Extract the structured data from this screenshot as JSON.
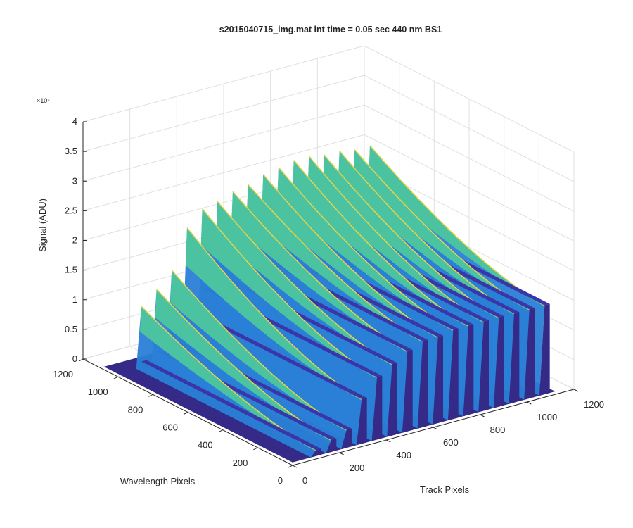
{
  "chart_data": {
    "type": "surface",
    "title": "s2015040715_img.mat int time = 0.05 sec  440 nm BS1",
    "xlabel": "Track Pixels",
    "ylabel": "Wavelength Pixels",
    "zlabel": "Signal (ADU)",
    "z_multiplier_label": "×10⁴",
    "x_ticks": [
      "0",
      "200",
      "400",
      "600",
      "800",
      "1000",
      "1200"
    ],
    "y_ticks": [
      "0",
      "200",
      "400",
      "600",
      "800",
      "1000",
      "1200"
    ],
    "z_ticks": [
      "0",
      "0.5",
      "1",
      "1.5",
      "2",
      "2.5",
      "3",
      "3.5",
      "4"
    ],
    "xlim": [
      0,
      1200
    ],
    "ylim": [
      0,
      1200
    ],
    "zlim": [
      0,
      40000
    ],
    "grid": true,
    "colormap": "parula",
    "baseline_signal": 500,
    "tracks": [
      {
        "track_pixel": 100,
        "peak_signal": 10800,
        "plateau_signal": 1500
      },
      {
        "track_pixel": 165,
        "peak_signal": 13000,
        "plateau_signal": 2500
      },
      {
        "track_pixel": 230,
        "peak_signal": 15500,
        "plateau_signal": 3500
      },
      {
        "track_pixel": 295,
        "peak_signal": 22000,
        "plateau_signal": 8000
      },
      {
        "track_pixel": 360,
        "peak_signal": 24500,
        "plateau_signal": 11000
      },
      {
        "track_pixel": 425,
        "peak_signal": 25000,
        "plateau_signal": 12500
      },
      {
        "track_pixel": 490,
        "peak_signal": 26000,
        "plateau_signal": 14000
      },
      {
        "track_pixel": 555,
        "peak_signal": 26500,
        "plateau_signal": 15000
      },
      {
        "track_pixel": 620,
        "peak_signal": 27500,
        "plateau_signal": 15000
      },
      {
        "track_pixel": 685,
        "peak_signal": 28000,
        "plateau_signal": 15500
      },
      {
        "track_pixel": 750,
        "peak_signal": 28500,
        "plateau_signal": 15500
      },
      {
        "track_pixel": 815,
        "peak_signal": 28500,
        "plateau_signal": 15500
      },
      {
        "track_pixel": 880,
        "peak_signal": 28000,
        "plateau_signal": 15500
      },
      {
        "track_pixel": 945,
        "peak_signal": 28000,
        "plateau_signal": 15500
      },
      {
        "track_pixel": 1010,
        "peak_signal": 27500,
        "plateau_signal": 15500
      },
      {
        "track_pixel": 1075,
        "peak_signal": 27500,
        "plateau_signal": 15500
      }
    ],
    "signal_wavelength_range": [
      0,
      1000
    ],
    "colors": {
      "floor": "#352a87",
      "plateau": "#3a36a8",
      "mid": "#2a7fd6",
      "high": "#4cc3a0",
      "peak": "#e5d44a",
      "grid": "#e0e0e0",
      "axis": "#262626"
    }
  }
}
